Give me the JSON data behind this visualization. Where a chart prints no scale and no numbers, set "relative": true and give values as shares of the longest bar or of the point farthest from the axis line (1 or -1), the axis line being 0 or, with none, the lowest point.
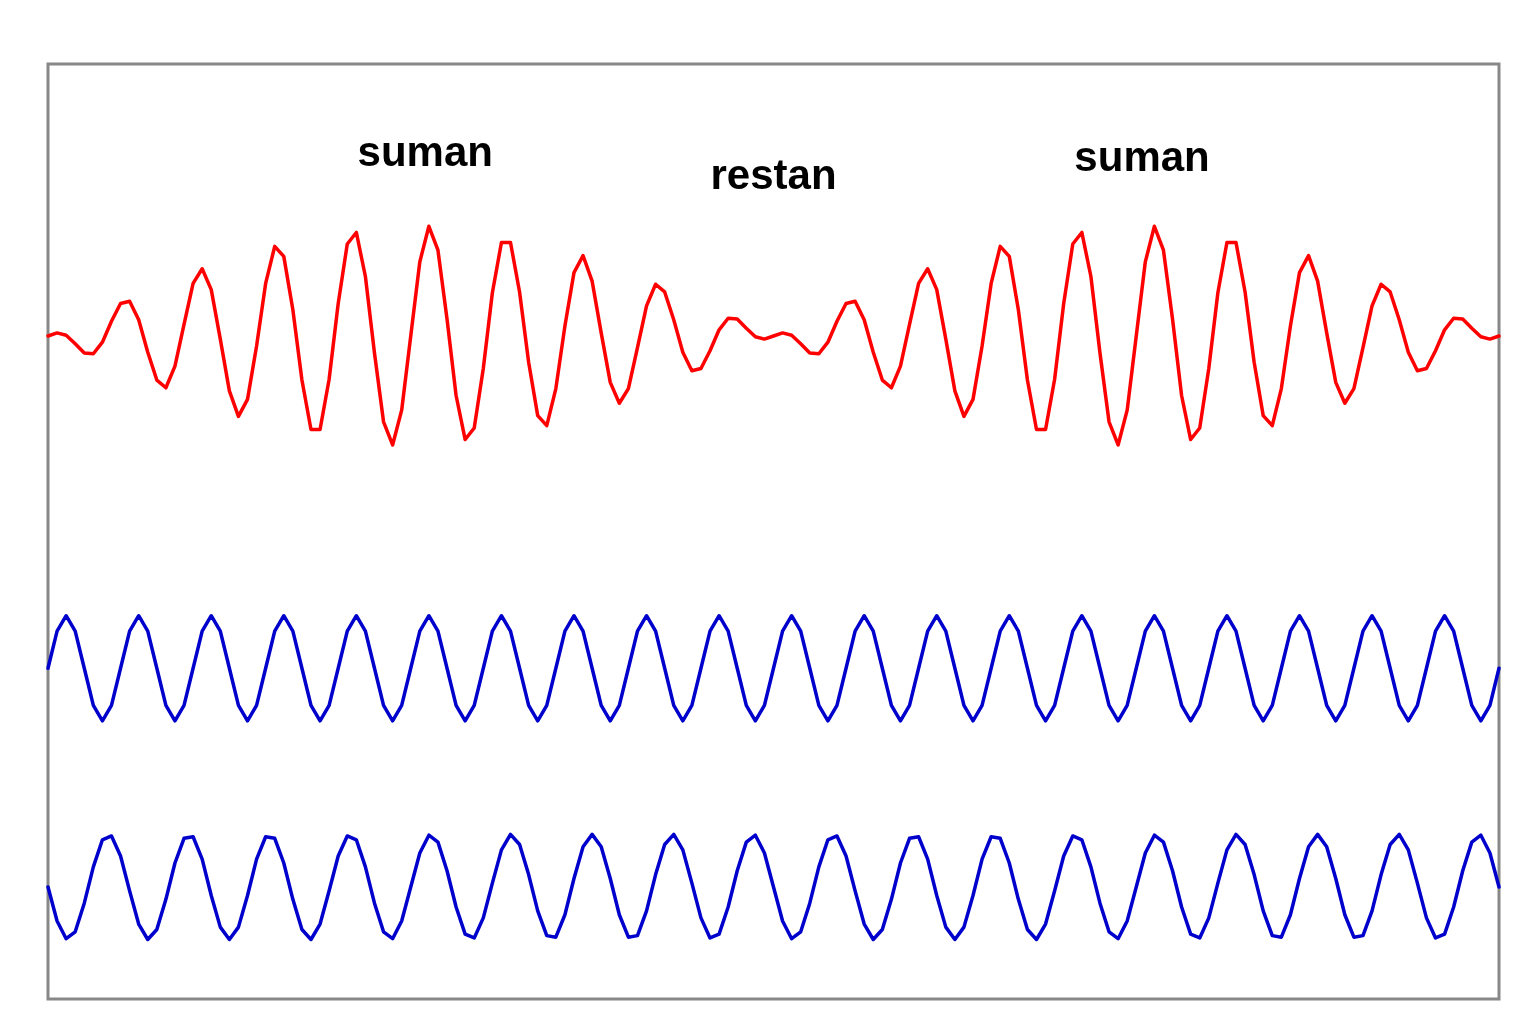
{
  "chart_data": {
    "type": "line",
    "relative": true,
    "line_style": "solid",
    "categories": [
      null,
      null,
      null,
      null,
      null,
      null,
      null,
      null,
      null,
      null,
      null,
      null,
      null,
      null,
      null,
      null,
      null,
      null,
      null,
      null,
      null,
      null,
      null,
      null,
      null,
      null,
      null,
      null,
      null,
      null,
      null,
      null,
      null,
      null,
      null,
      null,
      null,
      null,
      null,
      null,
      null,
      null,
      null,
      null,
      null,
      null,
      null,
      null,
      null,
      null,
      null,
      null,
      null,
      null,
      null,
      null,
      null,
      null,
      null,
      null,
      null,
      null,
      null,
      null,
      null,
      null,
      null,
      null,
      null,
      null,
      null,
      null,
      null,
      null,
      null,
      null,
      null,
      null,
      null,
      null,
      null,
      null,
      null,
      null,
      null,
      null,
      null,
      null,
      null,
      null,
      null,
      null,
      null,
      null,
      null,
      null,
      null,
      null,
      null,
      null,
      null,
      null,
      null,
      null,
      null,
      null,
      null,
      null,
      null,
      null,
      null,
      null,
      null,
      null,
      null,
      null,
      null,
      null,
      null,
      null,
      null,
      null,
      null,
      null,
      null,
      null,
      null,
      null,
      null,
      null,
      null,
      null,
      null,
      null,
      null,
      null,
      null,
      null,
      null,
      null,
      null,
      null,
      null,
      null,
      null,
      null,
      null,
      null,
      null,
      null,
      null,
      null,
      null,
      null,
      null,
      null,
      null,
      null,
      null,
      null,
      null
    ],
    "annotations": [
      "suman",
      "restan",
      "suman"
    ],
    "series": [
      {
        "color": "#ff0000",
        "values": [
          0.858,
          0.862,
          0.859,
          0.848,
          0.836,
          0.835,
          0.85,
          0.877,
          0.9,
          0.903,
          0.879,
          0.837,
          0.801,
          0.791,
          0.819,
          0.873,
          0.926,
          0.945,
          0.918,
          0.854,
          0.787,
          0.754,
          0.776,
          0.845,
          0.926,
          0.974,
          0.961,
          0.892,
          0.801,
          0.737,
          0.737,
          0.802,
          0.9,
          0.977,
          0.992,
          0.935,
          0.836,
          0.747,
          0.717,
          0.762,
          0.858,
          0.954,
          1.0,
          0.969,
          0.88,
          0.781,
          0.724,
          0.739,
          0.816,
          0.914,
          0.979,
          0.979,
          0.915,
          0.824,
          0.755,
          0.742,
          0.79,
          0.871,
          0.94,
          0.962,
          0.929,
          0.862,
          0.798,
          0.771,
          0.79,
          0.843,
          0.897,
          0.925,
          0.915,
          0.879,
          0.837,
          0.813,
          0.816,
          0.839,
          0.866,
          0.881,
          0.88,
          0.868,
          0.857,
          0.854,
          0.858,
          0.862,
          0.859,
          0.848,
          0.836,
          0.835,
          0.85,
          0.877,
          0.9,
          0.903,
          0.879,
          0.837,
          0.801,
          0.791,
          0.819,
          0.873,
          0.926,
          0.945,
          0.918,
          0.854,
          0.787,
          0.754,
          0.776,
          0.845,
          0.926,
          0.974,
          0.961,
          0.892,
          0.801,
          0.737,
          0.737,
          0.802,
          0.9,
          0.977,
          0.992,
          0.935,
          0.836,
          0.747,
          0.717,
          0.762,
          0.858,
          0.954,
          1.0,
          0.969,
          0.88,
          0.781,
          0.724,
          0.739,
          0.816,
          0.914,
          0.979,
          0.979,
          0.915,
          0.824,
          0.755,
          0.742,
          0.79,
          0.871,
          0.94,
          0.962,
          0.929,
          0.862,
          0.798,
          0.771,
          0.79,
          0.843,
          0.897,
          0.925,
          0.915,
          0.879,
          0.837,
          0.813,
          0.816,
          0.839,
          0.866,
          0.881,
          0.88,
          0.868,
          0.857,
          0.854,
          0.858
        ]
      },
      {
        "color": "#0000cc",
        "values": [
          0.428,
          0.476,
          0.496,
          0.476,
          0.428,
          0.38,
          0.36,
          0.38,
          0.428,
          0.476,
          0.496,
          0.476,
          0.428,
          0.38,
          0.36,
          0.38,
          0.428,
          0.476,
          0.496,
          0.476,
          0.428,
          0.38,
          0.36,
          0.38,
          0.428,
          0.476,
          0.496,
          0.476,
          0.428,
          0.38,
          0.36,
          0.38,
          0.428,
          0.476,
          0.496,
          0.476,
          0.428,
          0.38,
          0.36,
          0.38,
          0.428,
          0.476,
          0.496,
          0.476,
          0.428,
          0.38,
          0.36,
          0.38,
          0.428,
          0.476,
          0.496,
          0.476,
          0.428,
          0.38,
          0.36,
          0.38,
          0.428,
          0.476,
          0.496,
          0.476,
          0.428,
          0.38,
          0.36,
          0.38,
          0.428,
          0.476,
          0.496,
          0.476,
          0.428,
          0.38,
          0.36,
          0.38,
          0.428,
          0.476,
          0.496,
          0.476,
          0.428,
          0.38,
          0.36,
          0.38,
          0.428,
          0.476,
          0.496,
          0.476,
          0.428,
          0.38,
          0.36,
          0.38,
          0.428,
          0.476,
          0.496,
          0.476,
          0.428,
          0.38,
          0.36,
          0.38,
          0.428,
          0.476,
          0.496,
          0.476,
          0.428,
          0.38,
          0.36,
          0.38,
          0.428,
          0.476,
          0.496,
          0.476,
          0.428,
          0.38,
          0.36,
          0.38,
          0.428,
          0.476,
          0.496,
          0.476,
          0.428,
          0.38,
          0.36,
          0.38,
          0.428,
          0.476,
          0.496,
          0.476,
          0.428,
          0.38,
          0.36,
          0.38,
          0.428,
          0.476,
          0.496,
          0.476,
          0.428,
          0.38,
          0.36,
          0.38,
          0.428,
          0.476,
          0.496,
          0.476,
          0.428,
          0.38,
          0.36,
          0.38,
          0.428,
          0.476,
          0.496,
          0.476,
          0.428,
          0.38,
          0.36,
          0.38,
          0.428,
          0.476,
          0.496,
          0.476,
          0.428,
          0.38,
          0.36,
          0.38,
          0.428
        ]
      },
      {
        "color": "#0000cc",
        "values": [
          0.145,
          0.101,
          0.078,
          0.087,
          0.124,
          0.171,
          0.206,
          0.211,
          0.185,
          0.14,
          0.097,
          0.077,
          0.09,
          0.129,
          0.176,
          0.208,
          0.21,
          0.181,
          0.134,
          0.093,
          0.077,
          0.093,
          0.134,
          0.181,
          0.21,
          0.208,
          0.176,
          0.129,
          0.09,
          0.077,
          0.097,
          0.14,
          0.185,
          0.211,
          0.206,
          0.171,
          0.124,
          0.087,
          0.078,
          0.101,
          0.145,
          0.189,
          0.212,
          0.203,
          0.166,
          0.119,
          0.084,
          0.079,
          0.105,
          0.15,
          0.193,
          0.213,
          0.2,
          0.161,
          0.114,
          0.082,
          0.08,
          0.109,
          0.156,
          0.197,
          0.213,
          0.197,
          0.156,
          0.109,
          0.08,
          0.082,
          0.114,
          0.161,
          0.2,
          0.213,
          0.193,
          0.15,
          0.105,
          0.079,
          0.084,
          0.119,
          0.166,
          0.203,
          0.212,
          0.189,
          0.145,
          0.101,
          0.078,
          0.087,
          0.124,
          0.171,
          0.206,
          0.211,
          0.185,
          0.14,
          0.097,
          0.077,
          0.09,
          0.129,
          0.176,
          0.208,
          0.21,
          0.181,
          0.134,
          0.093,
          0.077,
          0.093,
          0.134,
          0.181,
          0.21,
          0.208,
          0.176,
          0.129,
          0.09,
          0.077,
          0.097,
          0.14,
          0.185,
          0.211,
          0.206,
          0.171,
          0.124,
          0.087,
          0.078,
          0.101,
          0.145,
          0.189,
          0.212,
          0.203,
          0.166,
          0.119,
          0.084,
          0.079,
          0.105,
          0.15,
          0.193,
          0.213,
          0.2,
          0.161,
          0.114,
          0.082,
          0.08,
          0.109,
          0.156,
          0.197,
          0.213,
          0.197,
          0.156,
          0.109,
          0.08,
          0.082,
          0.114,
          0.161,
          0.2,
          0.213,
          0.193,
          0.15,
          0.105,
          0.079,
          0.084,
          0.119,
          0.166,
          0.203,
          0.212,
          0.189,
          0.145
        ]
      }
    ]
  }
}
